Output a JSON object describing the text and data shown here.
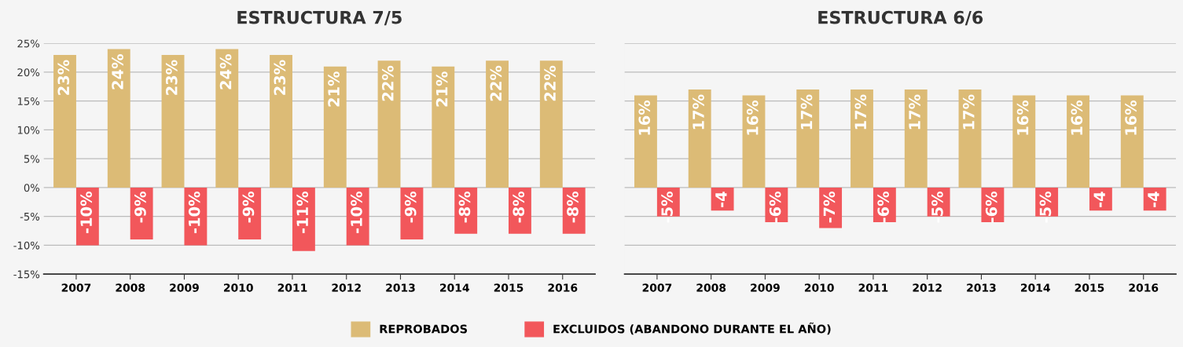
{
  "chart_data": [
    {
      "type": "bar",
      "title": "ESTRUCTURA 7/5",
      "categories": [
        "2007",
        "2008",
        "2009",
        "2010",
        "2011",
        "2012",
        "2013",
        "2014",
        "2015",
        "2016"
      ],
      "series": [
        {
          "name": "REPROBADOS",
          "color": "#dcbb76",
          "values": [
            23,
            24,
            23,
            24,
            23,
            21,
            22,
            21,
            22,
            22
          ],
          "value_labels": [
            "23%",
            "24%",
            "23%",
            "24%",
            "23%",
            "21%",
            "22%",
            "21%",
            "22%",
            "22%"
          ]
        },
        {
          "name": "EXCLUIDOS (ABANDONO DURANTE EL AÑO)",
          "color": "#f2575b",
          "values": [
            -10,
            -9,
            -10,
            -9,
            -11,
            -10,
            -9,
            -8,
            -8,
            -8
          ],
          "value_labels": [
            "-10%",
            "-9%",
            "-10%",
            "-9%",
            "-11%",
            "-10%",
            "-9%",
            "-8%",
            "-8%",
            "-8%"
          ]
        }
      ],
      "ylim": [
        -15,
        25
      ],
      "yticks": [
        {
          "value": -15,
          "label": "-15%"
        },
        {
          "value": -10,
          "label": "-10%"
        },
        {
          "value": -5,
          "label": "-5%"
        },
        {
          "value": 0,
          "label": "0%"
        },
        {
          "value": 5,
          "label": "5%"
        },
        {
          "value": 10,
          "label": "10%"
        },
        {
          "value": 15,
          "label": "15%"
        },
        {
          "value": 20,
          "label": "20%"
        },
        {
          "value": 25,
          "label": "25%"
        }
      ],
      "grid": "y",
      "legend": "bottom"
    },
    {
      "type": "bar",
      "title": "ESTRUCTURA 6/6",
      "categories": [
        "2007",
        "2008",
        "2009",
        "2010",
        "2011",
        "2012",
        "2013",
        "2014",
        "2015",
        "2016"
      ],
      "series": [
        {
          "color": "#dcbb76",
          "values": [
            16,
            17,
            16,
            17,
            17,
            17,
            17,
            16,
            16,
            16
          ],
          "value_labels": [
            "16%",
            "17%",
            "16%",
            "17%",
            "17%",
            "17%",
            "17%",
            "16%",
            "16%",
            "16%"
          ]
        },
        {
          "color": "#f2575b",
          "values": [
            -5,
            -4,
            -6,
            -7,
            -6,
            -5,
            -6,
            -5,
            -4,
            -4
          ],
          "value_labels": [
            "-5%",
            "-4",
            "-6%",
            "-7%",
            "-6%",
            "-5%",
            "-6%",
            "-5%",
            "-4",
            "-4"
          ]
        }
      ],
      "ylim": [
        -15,
        25
      ],
      "yticks": [
        {
          "value": -15,
          "label": null
        },
        {
          "value": -10,
          "label": null
        },
        {
          "value": -5,
          "label": null
        },
        {
          "value": 0,
          "label": null
        },
        {
          "value": 5,
          "label": null
        },
        {
          "value": 10,
          "label": null
        },
        {
          "value": 15,
          "label": null
        },
        {
          "value": 20,
          "label": null
        },
        {
          "value": 25,
          "label": null
        }
      ],
      "grid": "y",
      "tick_labels": "x"
    }
  ]
}
